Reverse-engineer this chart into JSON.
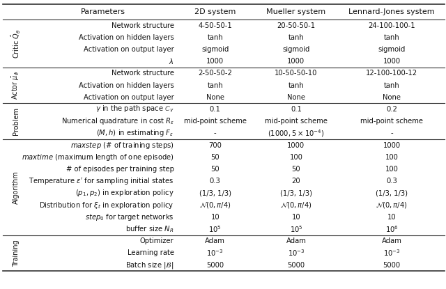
{
  "header": [
    "Parameters",
    "2D system",
    "Mueller system",
    "Lennard-Jones system"
  ],
  "sections": [
    {
      "label": "Critic $\\hat{Q}_{\\theta}$",
      "rows": [
        [
          "Network structure",
          "4-50-50-1",
          "20-50-50-1",
          "24-100-100-1"
        ],
        [
          "Activation on hidden layers",
          "tanh",
          "tanh",
          "tanh"
        ],
        [
          "Activation on output layer",
          "sigmoid",
          "sigmoid",
          "sigmoid"
        ],
        [
          "$\\lambda$",
          "1000",
          "1000",
          "1000"
        ]
      ]
    },
    {
      "label": "Actor $\\bar{\\mu}_{\\phi}$",
      "rows": [
        [
          "Network structure",
          "2-50-50-2",
          "10-50-50-10",
          "12-100-100-12"
        ],
        [
          "Activation on hidden layers",
          "tanh",
          "tanh",
          "tanh"
        ],
        [
          "Activation on output layer",
          "None",
          "None",
          "None"
        ]
      ]
    },
    {
      "label": "Problem",
      "rows": [
        [
          "$\\gamma$ in the path space $\\mathbb{C}_{\\gamma}$",
          "0.1",
          "0.1",
          "0.2"
        ],
        [
          "Numerical quadrature in cost $R_{\\epsilon}$",
          "mid-point scheme",
          "mid-point scheme",
          "mid-point scheme"
        ],
        [
          "$(M, h)$ in estimating $F_{\\epsilon}$",
          "-",
          "$(1000, 5 \\times 10^{-4})$",
          "-"
        ]
      ]
    },
    {
      "label": "Algorithm",
      "rows": [
        [
          "$maxstep$ (# of training steps)",
          "700",
          "1000",
          "1000"
        ],
        [
          "$maxtime$ (maximum length of one episode)",
          "50",
          "100",
          "100"
        ],
        [
          "# of episodes per training step",
          "50",
          "50",
          "100"
        ],
        [
          "Temperature $\\epsilon'$ for sampling initial states",
          "0.3",
          "20",
          "0.3"
        ],
        [
          "$(p_1, p_2)$ in exploration policy",
          "(1/3, 1/3)",
          "(1/3, 1/3)",
          "(1/3, 1/3)"
        ],
        [
          "Distribution for $\\xi_t$ in exploration policy",
          "$\\mathcal{N}(0, \\pi/4)$",
          "$\\mathcal{N}(0, \\pi/4)$",
          "$\\mathcal{N}(0, \\pi/4)$"
        ],
        [
          "$step_0$ for target networks",
          "10",
          "10",
          "10"
        ],
        [
          "buffer size $N_R$",
          "$10^5$",
          "$10^5$",
          "$10^6$"
        ]
      ]
    },
    {
      "label": "Training",
      "rows": [
        [
          "Optimizer",
          "Adam",
          "Adam",
          "Adam"
        ],
        [
          "Learning rate",
          "$10^{-3}$",
          "$10^{-3}$",
          "$10^{-3}$"
        ],
        [
          "Batch size $|\\mathcal{B}|$",
          "5000",
          "5000",
          "5000"
        ]
      ]
    }
  ],
  "line_color": "#333333",
  "text_color": "#111111",
  "header_fontsize": 8.0,
  "cell_fontsize": 7.2,
  "label_fontsize": 7.0
}
